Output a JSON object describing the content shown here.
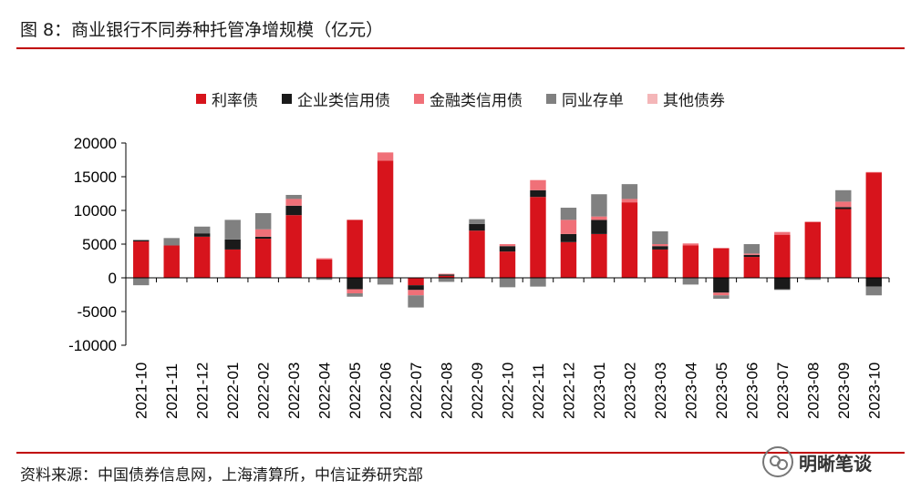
{
  "title": "图 8：商业银行不同券种托管净增规模（亿元）",
  "source": "资料来源：中国债券信息网，上海清算所，中信证券研究部",
  "watermark_text": "明晰笔谈",
  "chart_data": {
    "type": "bar",
    "stacked": true,
    "title": "图 8：商业银行不同券种托管净增规模（亿元）",
    "xlabel": "",
    "ylabel": "",
    "ylim": [
      -10000,
      20000
    ],
    "yticks": [
      20000,
      15000,
      10000,
      5000,
      0,
      -5000,
      -10000
    ],
    "grid": false,
    "legend_position": "top",
    "categories": [
      "2021-10",
      "2021-11",
      "2021-12",
      "2022-01",
      "2022-02",
      "2022-03",
      "2022-04",
      "2022-05",
      "2022-06",
      "2022-07",
      "2022-08",
      "2022-09",
      "2022-10",
      "2022-11",
      "2022-12",
      "2023-01",
      "2023-02",
      "2023-03",
      "2023-04",
      "2023-05",
      "2023-06",
      "2023-07",
      "2023-08",
      "2023-09",
      "2023-10"
    ],
    "series": [
      {
        "name": "利率债",
        "color": "#d7141c",
        "values": [
          5400,
          4800,
          6100,
          4200,
          5800,
          9300,
          2700,
          8600,
          17400,
          -1100,
          300,
          7000,
          3900,
          12000,
          5300,
          6500,
          11200,
          4200,
          4800,
          4400,
          3100,
          6400,
          8300,
          10200,
          15600
        ]
      },
      {
        "name": "企业类信用债",
        "color": "#1a1a1a",
        "values": [
          200,
          0,
          500,
          1500,
          300,
          1400,
          0,
          -1700,
          0,
          -700,
          200,
          1000,
          800,
          1000,
          1200,
          2100,
          0,
          500,
          0,
          -2200,
          300,
          -1700,
          0,
          300,
          -1300
        ]
      },
      {
        "name": "金融类信用债",
        "color": "#f07078",
        "values": [
          0,
          0,
          0,
          0,
          1100,
          1000,
          200,
          -600,
          1200,
          -800,
          100,
          0,
          300,
          1500,
          2100,
          500,
          500,
          300,
          300,
          -400,
          200,
          400,
          0,
          800,
          100
        ]
      },
      {
        "name": "同业存单",
        "color": "#808080",
        "values": [
          -1100,
          1100,
          1000,
          2900,
          2400,
          600,
          -300,
          -500,
          -1000,
          -1800,
          -600,
          700,
          -1400,
          -1300,
          1800,
          3300,
          2200,
          1900,
          -1000,
          -500,
          1400,
          -100,
          -300,
          1700,
          -1300
        ]
      },
      {
        "name": "其他债券",
        "color": "#f4b6b8",
        "values": [
          0,
          0,
          0,
          0,
          0,
          0,
          0,
          0,
          0,
          0,
          0,
          0,
          0,
          0,
          0,
          0,
          0,
          0,
          0,
          0,
          0,
          0,
          0,
          0,
          0
        ]
      }
    ]
  }
}
